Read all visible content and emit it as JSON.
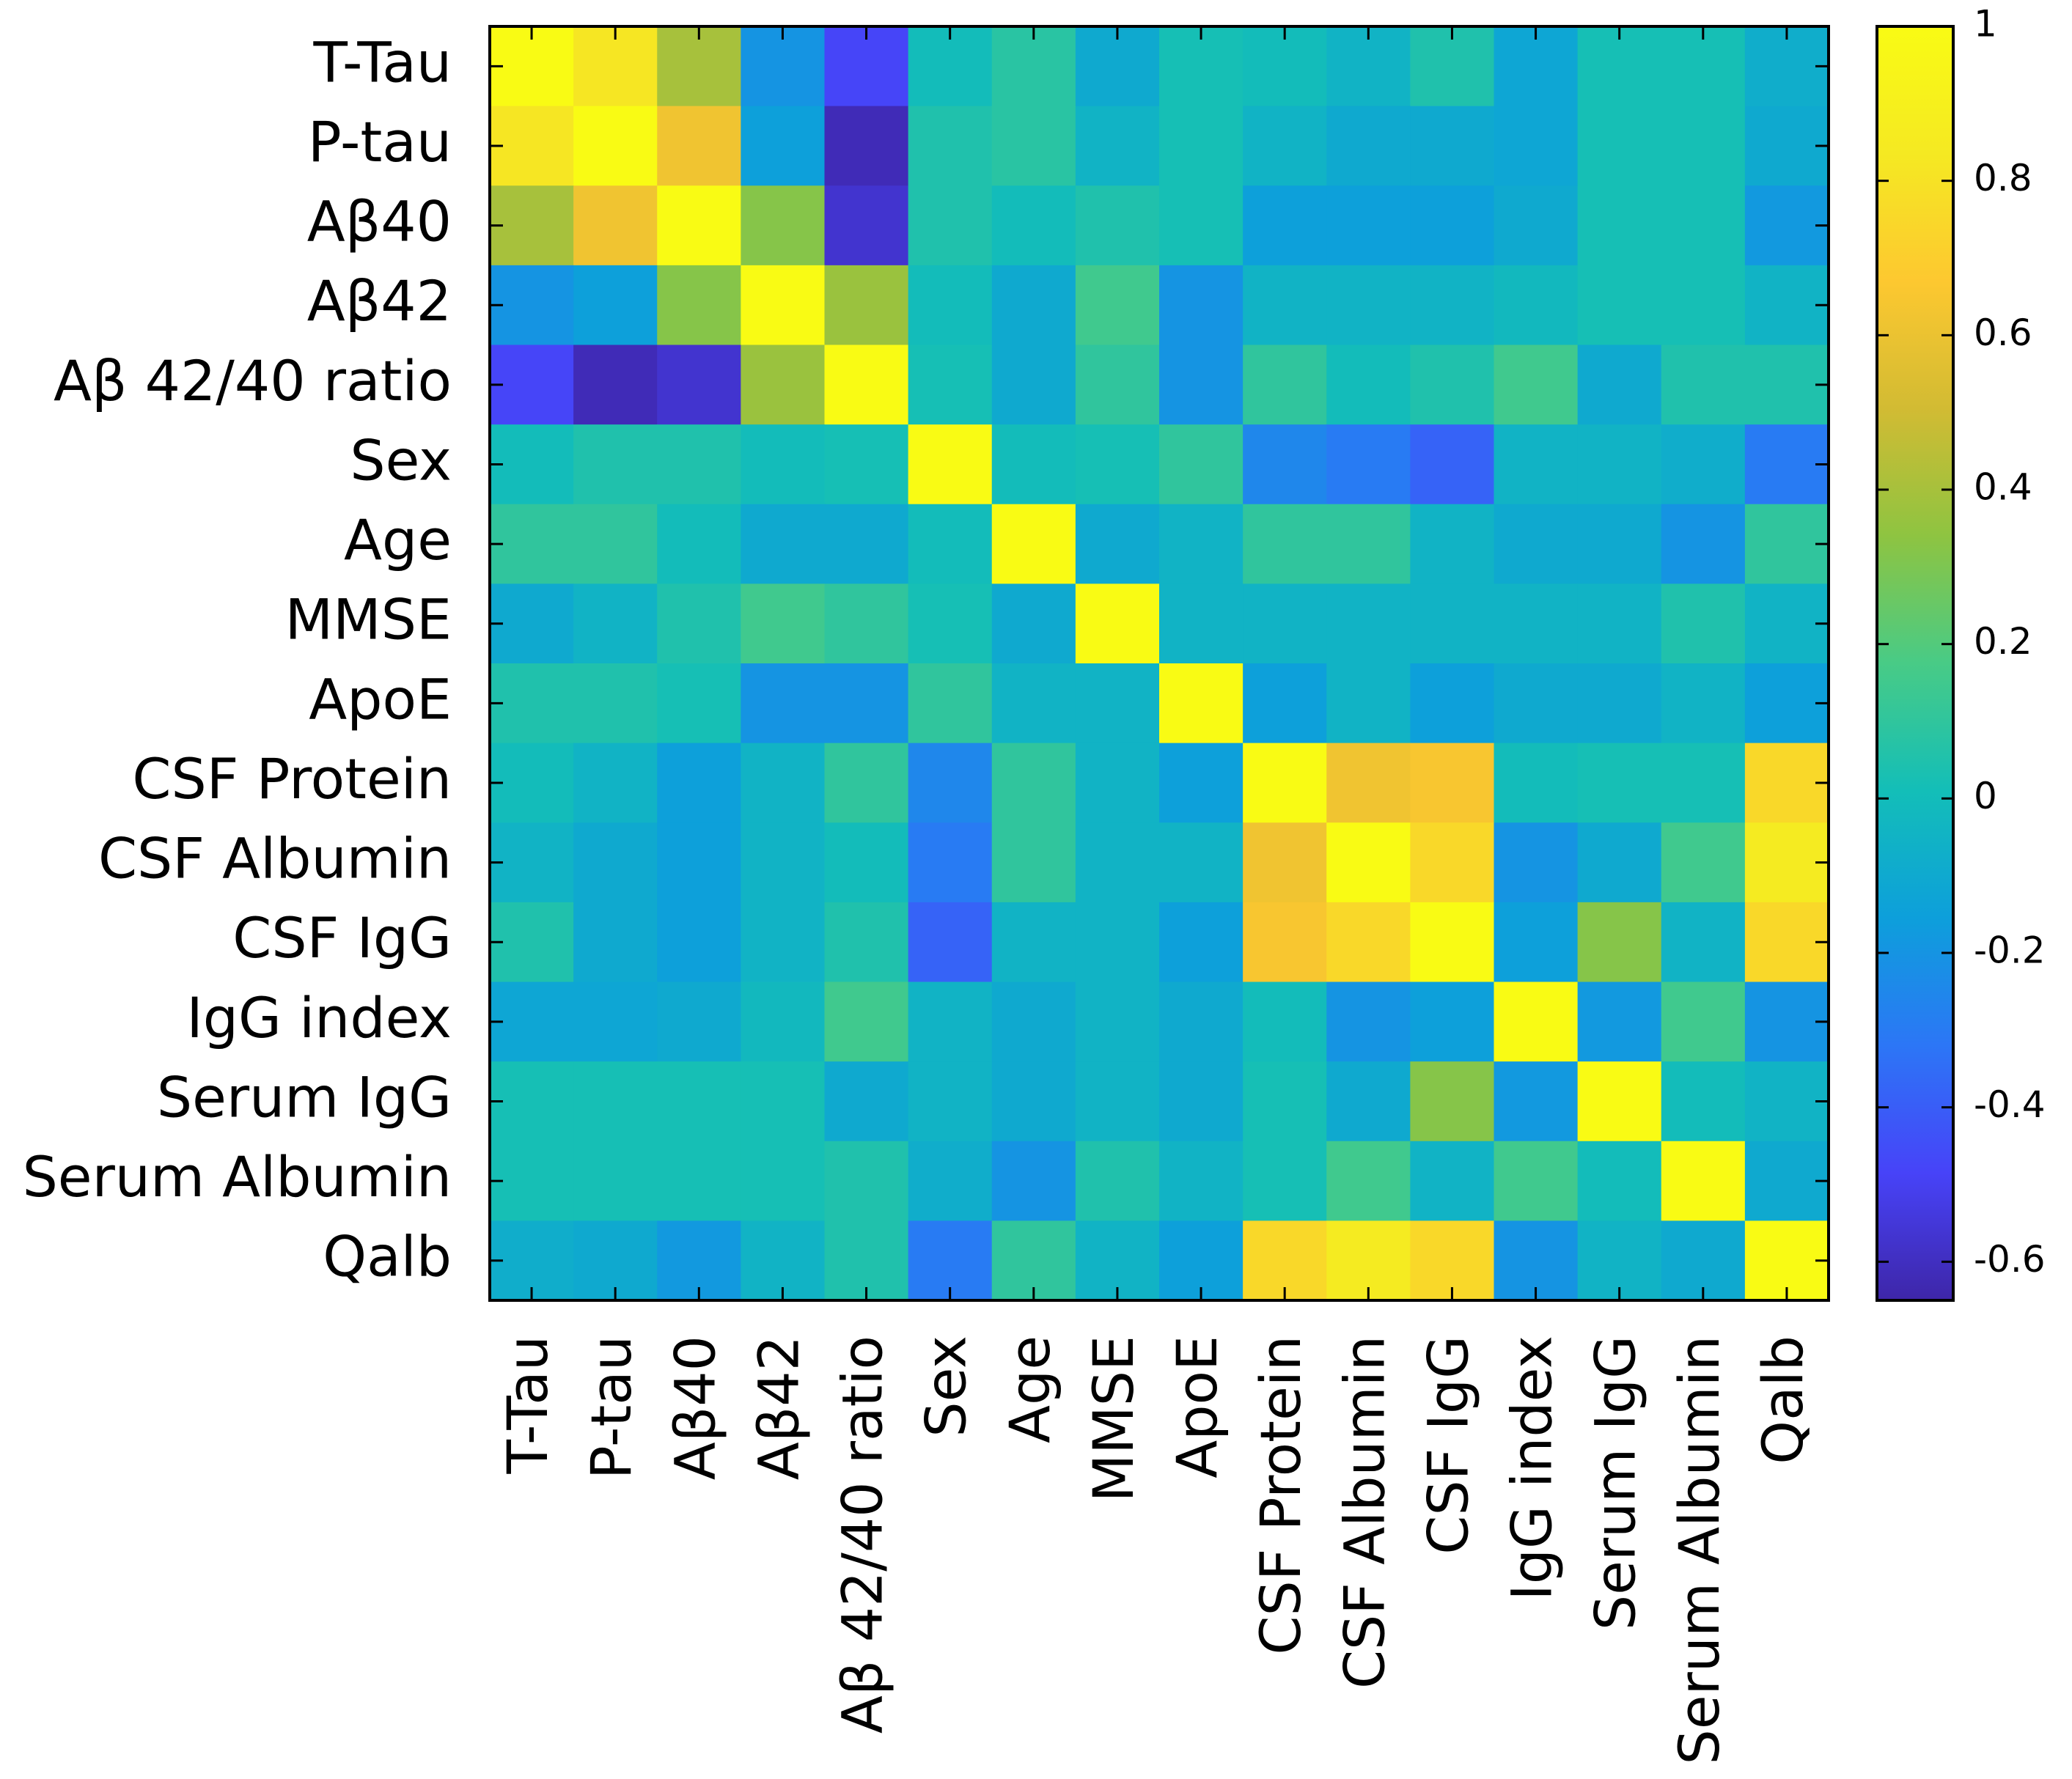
{
  "chart_data": {
    "type": "heatmap",
    "title": "",
    "xlabel": "",
    "ylabel": "",
    "labels": [
      "T-Tau",
      "P-tau",
      "Aβ40",
      "Aβ42",
      "Aβ 42/40 ratio",
      "Sex",
      "Age",
      "MMSE",
      "ApoE",
      "CSF Protein",
      "CSF Albumin",
      "CSF IgG",
      "IgG index",
      "Serum IgG",
      "Serum Albumin",
      "Qalb"
    ],
    "row_labels": [
      "T-Tau",
      "P-tau",
      "Aβ40",
      "Aβ42",
      "Aβ 42/40 ratio",
      "Sex",
      "Age",
      "MMSE",
      "ApoE",
      "CSF Protein",
      "CSF Albumin",
      "CSF IgG",
      "IgG index ",
      "Serum IgG",
      "Serum Albumin",
      "Qalb"
    ],
    "col_labels": [
      "T-Tau",
      "P-tau",
      "Aβ40",
      "Aβ42",
      "Aβ 42/40 ratio",
      "Sex",
      "Age",
      "MMSE",
      "ApoE",
      "CSF Protein",
      "CSF Albumin",
      "CSF IgG",
      "IgG index",
      "Serum IgG",
      "Serum Albumin",
      "Qalb"
    ],
    "values": [
      [
        1.0,
        0.82,
        0.4,
        -0.2,
        -0.48,
        0.0,
        0.08,
        -0.1,
        0.02,
        0.0,
        -0.05,
        0.05,
        -0.12,
        0.02,
        0.02,
        -0.08
      ],
      [
        0.82,
        1.0,
        0.62,
        -0.15,
        -0.62,
        0.05,
        0.08,
        -0.05,
        0.02,
        -0.05,
        -0.1,
        -0.1,
        -0.12,
        0.02,
        0.02,
        -0.1
      ],
      [
        0.4,
        0.62,
        1.0,
        0.32,
        -0.57,
        0.05,
        0.0,
        0.05,
        0.02,
        -0.15,
        -0.15,
        -0.15,
        -0.1,
        0.02,
        0.02,
        -0.18
      ],
      [
        -0.2,
        -0.15,
        0.32,
        1.0,
        0.37,
        0.0,
        -0.1,
        0.15,
        -0.2,
        -0.05,
        -0.05,
        -0.05,
        -0.02,
        0.02,
        0.02,
        -0.05
      ],
      [
        -0.48,
        -0.62,
        -0.57,
        0.37,
        1.0,
        0.02,
        -0.1,
        0.1,
        -0.2,
        0.1,
        0.0,
        0.05,
        0.15,
        -0.1,
        0.05,
        0.05
      ],
      [
        0.0,
        0.05,
        0.05,
        0.0,
        0.02,
        1.0,
        0.0,
        0.02,
        0.1,
        -0.25,
        -0.3,
        -0.38,
        -0.05,
        -0.05,
        -0.08,
        -0.3
      ],
      [
        0.1,
        0.1,
        0.0,
        -0.1,
        -0.1,
        0.0,
        1.0,
        -0.1,
        -0.05,
        0.1,
        0.1,
        -0.05,
        -0.1,
        -0.1,
        -0.2,
        0.1
      ],
      [
        -0.1,
        -0.05,
        0.05,
        0.15,
        0.1,
        0.02,
        -0.1,
        1.0,
        -0.05,
        -0.05,
        -0.05,
        -0.05,
        -0.05,
        -0.05,
        0.05,
        -0.05
      ],
      [
        0.05,
        0.05,
        0.02,
        -0.2,
        -0.2,
        0.1,
        -0.05,
        -0.05,
        1.0,
        -0.15,
        -0.05,
        -0.15,
        -0.1,
        -0.1,
        -0.05,
        -0.15
      ],
      [
        0.0,
        -0.05,
        -0.15,
        -0.05,
        0.1,
        -0.25,
        0.1,
        -0.05,
        -0.15,
        1.0,
        0.62,
        0.65,
        0.0,
        0.02,
        0.02,
        0.75
      ],
      [
        -0.05,
        -0.1,
        -0.15,
        -0.05,
        0.0,
        -0.3,
        0.1,
        -0.05,
        -0.05,
        0.62,
        1.0,
        0.75,
        -0.2,
        -0.1,
        0.15,
        0.85
      ],
      [
        0.05,
        -0.1,
        -0.15,
        -0.05,
        0.05,
        -0.38,
        -0.05,
        -0.05,
        -0.15,
        0.65,
        0.75,
        1.0,
        -0.15,
        0.32,
        -0.05,
        0.75
      ],
      [
        -0.12,
        -0.12,
        -0.1,
        -0.02,
        0.15,
        -0.05,
        -0.1,
        -0.05,
        -0.1,
        0.0,
        -0.2,
        -0.15,
        1.0,
        -0.18,
        0.15,
        -0.2
      ],
      [
        0.02,
        0.02,
        0.02,
        0.02,
        -0.1,
        -0.05,
        -0.1,
        -0.05,
        -0.1,
        0.02,
        -0.1,
        0.32,
        -0.18,
        1.0,
        0.0,
        -0.05
      ],
      [
        0.02,
        0.02,
        0.02,
        0.02,
        0.05,
        -0.08,
        -0.2,
        0.05,
        -0.05,
        0.02,
        0.15,
        -0.05,
        0.15,
        0.0,
        1.0,
        -0.1
      ],
      [
        -0.08,
        -0.1,
        -0.18,
        -0.05,
        0.05,
        -0.3,
        0.1,
        -0.05,
        -0.15,
        0.75,
        0.85,
        0.75,
        -0.2,
        -0.05,
        -0.1,
        1.0
      ]
    ],
    "colorbar": {
      "range": [
        -0.65,
        1.0
      ],
      "ticks": [
        1,
        0.8,
        0.6,
        0.4,
        0.2,
        0,
        -0.2,
        -0.4,
        -0.6
      ],
      "tick_labels": [
        "1",
        "0.8",
        "0.6",
        "0.4",
        "0.2",
        "0",
        "-0.2",
        "-0.4",
        "-0.6"
      ]
    },
    "colormap": "parula",
    "colormap_stops": [
      "#3e26a8",
      "#4743f8",
      "#2c76f6",
      "#0d9fdb",
      "#13beb8",
      "#48cb86",
      "#8ec441",
      "#d2bb33",
      "#fdc830",
      "#f5e922",
      "#f9fb14"
    ],
    "grid": false,
    "legend": "right"
  }
}
